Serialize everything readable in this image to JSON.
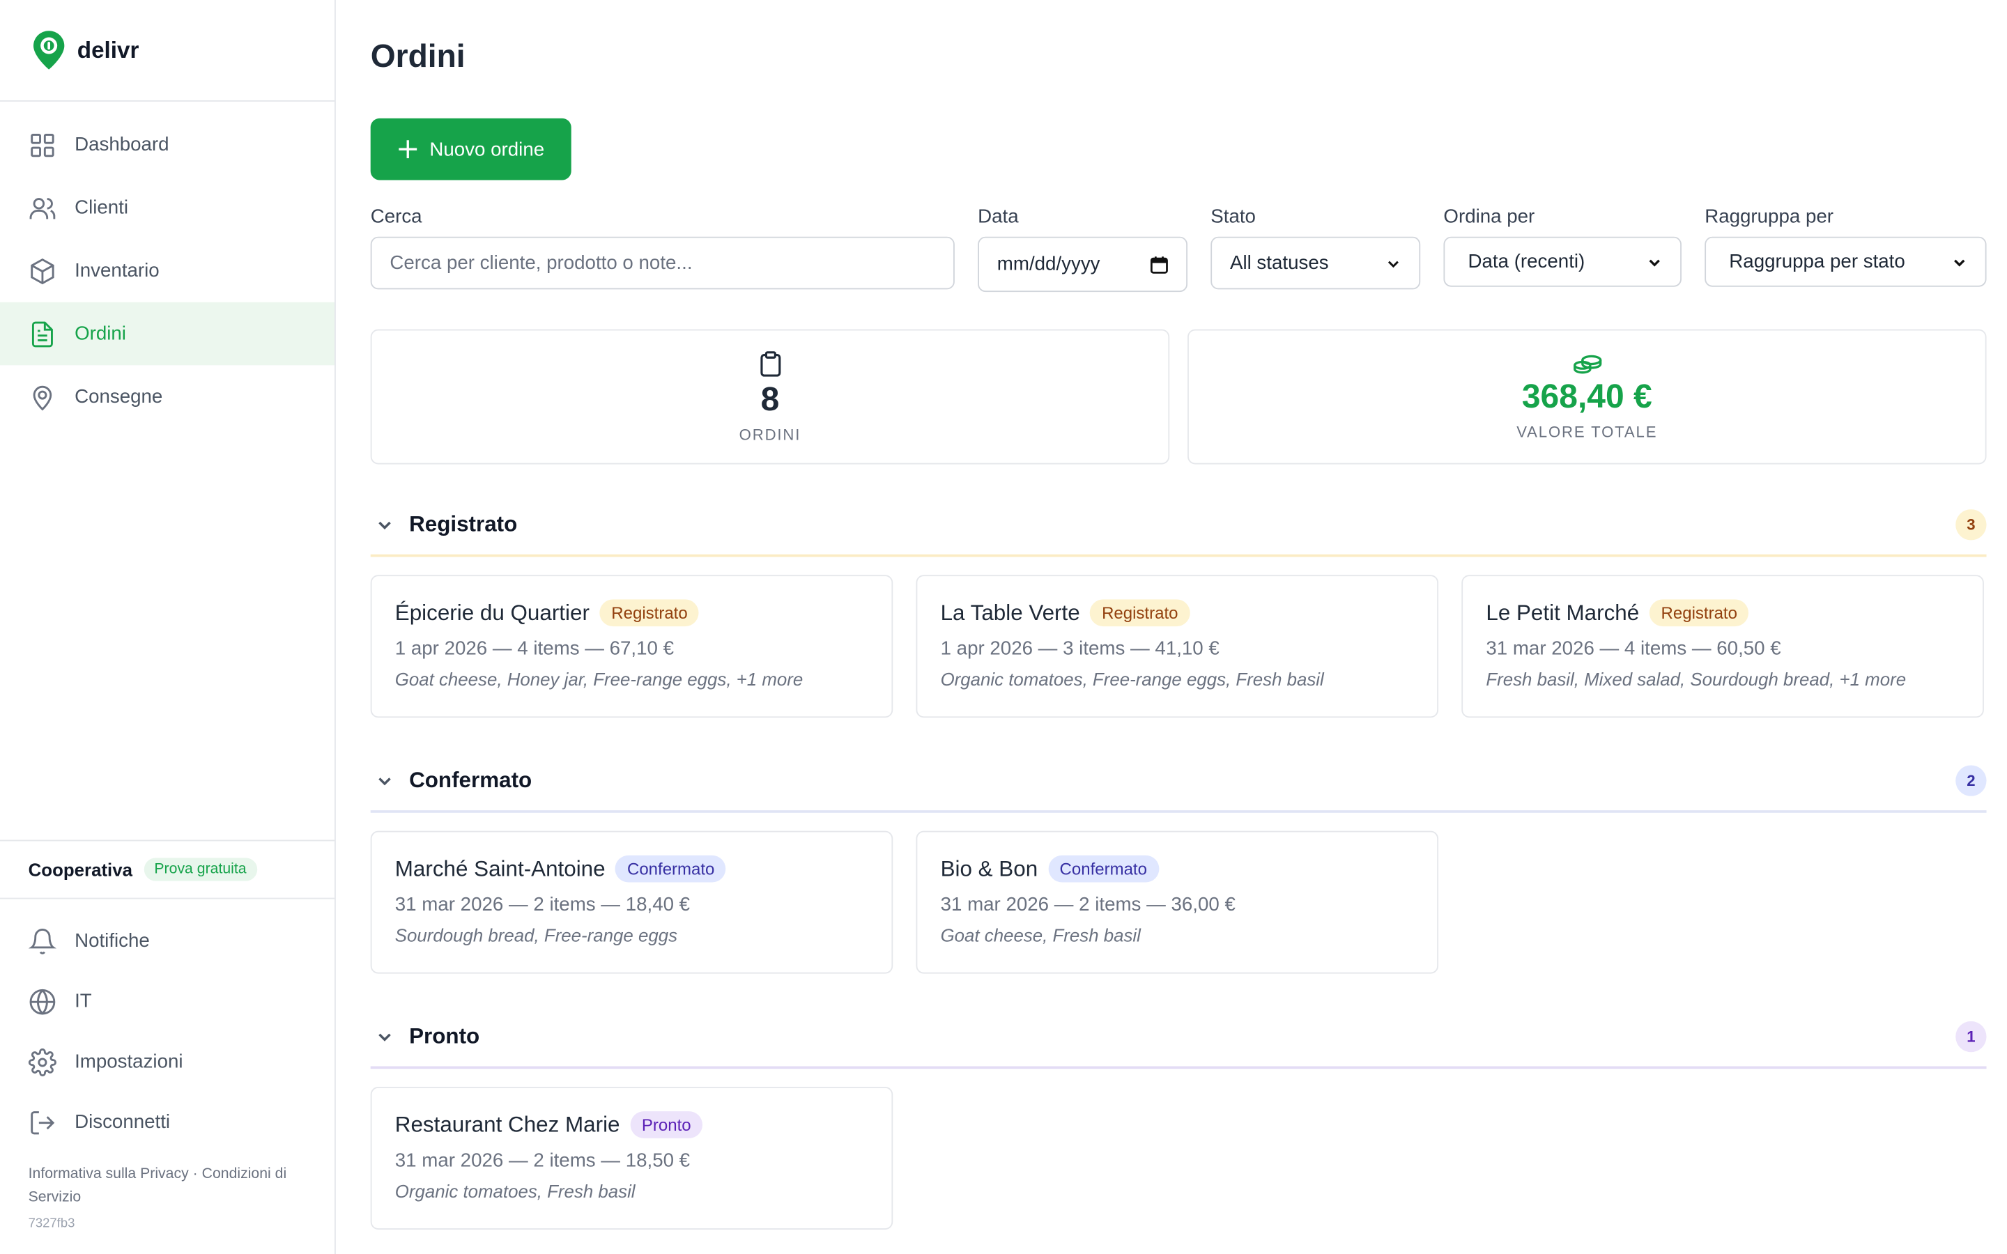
{
  "app": {
    "name": "delivr"
  },
  "nav": [
    {
      "label": "Dashboard",
      "icon": "grid-icon"
    },
    {
      "label": "Clienti",
      "icon": "users-icon"
    },
    {
      "label": "Inventario",
      "icon": "box-icon"
    },
    {
      "label": "Ordini",
      "icon": "document-icon"
    },
    {
      "label": "Consegne",
      "icon": "map-pin-icon"
    }
  ],
  "org": {
    "name": "Cooperativa",
    "badge": "Prova gratuita"
  },
  "bottom_nav": [
    {
      "label": "Notifiche",
      "icon": "bell-icon"
    },
    {
      "label": "IT",
      "icon": "globe-icon"
    },
    {
      "label": "Impostazioni",
      "icon": "gear-icon"
    },
    {
      "label": "Disconnetti",
      "icon": "logout-icon"
    }
  ],
  "legal": {
    "privacy": "Informativa sulla Privacy",
    "sep": "·",
    "terms": "Condizioni di Servizio"
  },
  "version": "7327fb3",
  "page": {
    "title": "Ordini",
    "new_button": "Nuovo ordine"
  },
  "filters": {
    "search_label": "Cerca",
    "search_placeholder": "Cerca per cliente, prodotto o note...",
    "date_label": "Data",
    "date_value": "mm/dd/yyyy",
    "status_label": "Stato",
    "status_value": "All statuses",
    "sort_label": "Ordina per",
    "sort_value": "Data (recenti)",
    "group_label": "Raggruppa per",
    "group_value": "Raggruppa per stato"
  },
  "stats": {
    "orders_value": "8",
    "orders_label": "ORDINI",
    "total_value": "368,40 €",
    "total_label": "VALORE TOTALE"
  },
  "colors": {
    "accent": "#16a34a"
  },
  "groups": [
    {
      "title": "Registrato",
      "count": "3",
      "cards": [
        {
          "name": "Épicerie du Quartier",
          "badge": "Registrato",
          "meta": "1 apr 2026 — 4 items — 67,10 €",
          "items": "Goat cheese, Honey jar, Free-range eggs, +1 more"
        },
        {
          "name": "La Table Verte",
          "badge": "Registrato",
          "meta": "1 apr 2026 — 3 items — 41,10 €",
          "items": "Organic tomatoes, Free-range eggs, Fresh basil"
        },
        {
          "name": "Le Petit Marché",
          "badge": "Registrato",
          "meta": "31 mar 2026 — 4 items — 60,50 €",
          "items": "Fresh basil, Mixed salad, Sourdough bread, +1 more"
        }
      ]
    },
    {
      "title": "Confermato",
      "count": "2",
      "cards": [
        {
          "name": "Marché Saint-Antoine",
          "badge": "Confermato",
          "meta": "31 mar 2026 — 2 items — 18,40 €",
          "items": "Sourdough bread, Free-range eggs"
        },
        {
          "name": "Bio & Bon",
          "badge": "Confermato",
          "meta": "31 mar 2026 — 2 items — 36,00 €",
          "items": "Goat cheese, Fresh basil"
        }
      ]
    },
    {
      "title": "Pronto",
      "count": "1",
      "cards": [
        {
          "name": "Restaurant Chez Marie",
          "badge": "Pronto",
          "meta": "31 mar 2026 — 2 items — 18,50 €",
          "items": "Organic tomatoes, Fresh basil"
        }
      ]
    }
  ]
}
